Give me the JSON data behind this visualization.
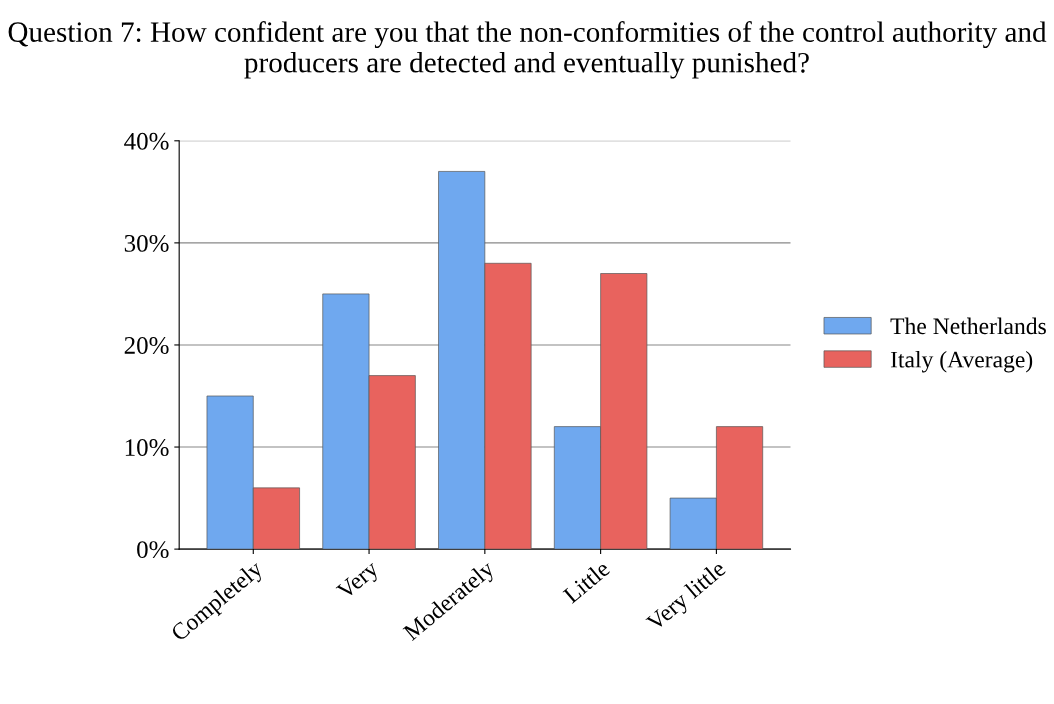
{
  "chart_data": {
    "type": "bar",
    "title": "Question 7: How confident are you that the non-conformities of the control authority and producers are detected and eventually punished?",
    "categories": [
      "Completely",
      "Very",
      "Moderately",
      "Little",
      "Very little"
    ],
    "series": [
      {
        "name": "The Netherlands",
        "color": "#6fa8ef",
        "values": [
          15,
          25,
          37,
          12,
          5
        ]
      },
      {
        "name": "Italy (Average)",
        "color": "#e8635e",
        "values": [
          6,
          17,
          28,
          27,
          12
        ]
      }
    ],
    "ylim": [
      0,
      40
    ],
    "yticks": [
      {
        "value": 0,
        "label": "0%"
      },
      {
        "value": 10,
        "label": "10%"
      },
      {
        "value": 20,
        "label": "20%"
      },
      {
        "value": 30,
        "label": "30%"
      },
      {
        "value": 40,
        "label": "40%"
      }
    ],
    "grid": "y",
    "legend": "right"
  }
}
